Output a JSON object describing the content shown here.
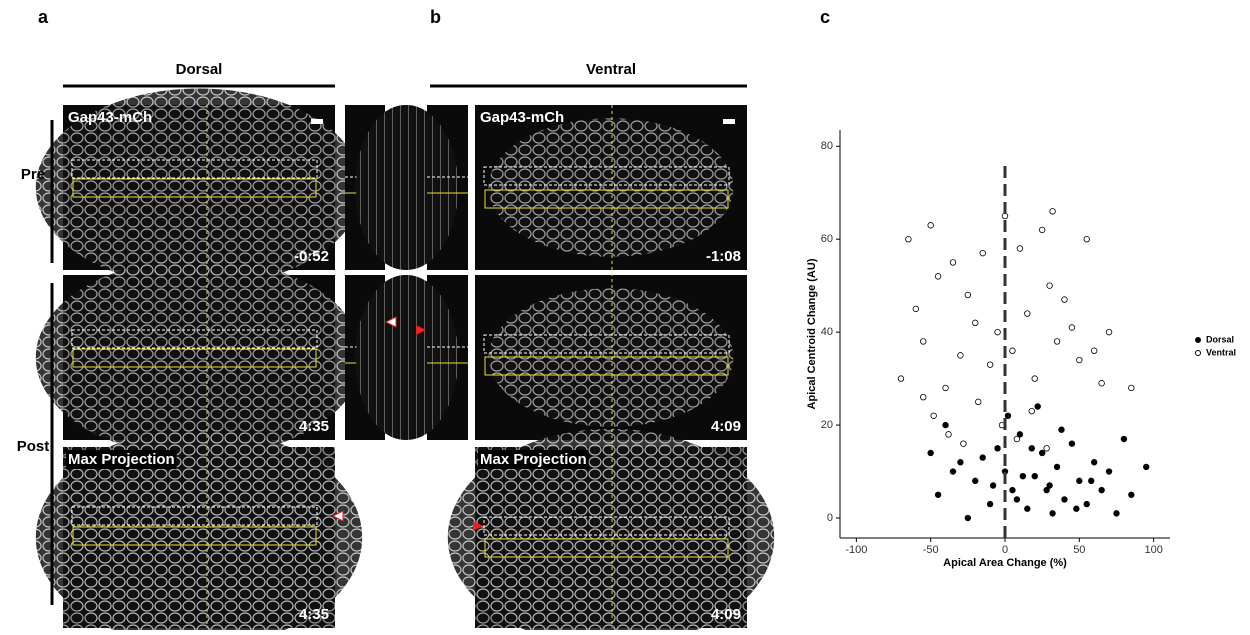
{
  "panel_labels": [
    "a",
    "b",
    "c"
  ],
  "column_titles": [
    "Dorsal",
    "Ventral"
  ],
  "row_labels": [
    "Pre",
    "Post"
  ],
  "images": [
    {
      "label": "Gap43-mCh",
      "time": "-0:52"
    },
    {
      "time": "4:35"
    },
    {
      "label": "Max Projection",
      "time": "4:35"
    },
    {
      "label": "Gap43-mCh",
      "time": "-1:08"
    },
    {
      "time": "4:09"
    },
    {
      "label": "Max Projection",
      "time": "4:09"
    }
  ],
  "chart_data": {
    "type": "scatter",
    "x_label": "Apical Area Change (%)",
    "y_label": "Apical Centroid Change (AU)",
    "xlim": [
      -111,
      111
    ],
    "ylim": [
      -4.3,
      83.5
    ],
    "xticks": [
      -100,
      -50,
      0,
      50,
      100
    ],
    "yticks": [
      0,
      20,
      40,
      60,
      80
    ],
    "vline": 0,
    "legend": "right",
    "series": [
      {
        "name": "Dorsal",
        "color": "#000000",
        "hollow": false,
        "x": [
          -45,
          -30,
          -20,
          -10,
          -5,
          0,
          5,
          10,
          15,
          20,
          25,
          30,
          35,
          40,
          45,
          50,
          55,
          60,
          65,
          70,
          75,
          80,
          85,
          95,
          -40,
          -25,
          -15,
          -8,
          2,
          8,
          12,
          18,
          28,
          38,
          48,
          58,
          -35,
          -50,
          22,
          32
        ],
        "values": [
          5,
          12,
          8,
          3,
          15,
          10,
          6,
          18,
          2,
          9,
          14,
          7,
          11,
          4,
          16,
          8,
          3,
          12,
          6,
          10,
          1,
          17,
          5,
          11,
          20,
          0,
          13,
          7,
          22,
          4,
          9,
          15,
          6,
          19,
          2,
          8,
          10,
          14,
          24,
          1
        ]
      },
      {
        "name": "Ventral",
        "color": "#000000",
        "hollow": true,
        "x": [
          -70,
          -65,
          -60,
          -55,
          -50,
          -45,
          -40,
          -35,
          -30,
          -25,
          -20,
          -15,
          -10,
          -5,
          0,
          5,
          10,
          15,
          20,
          25,
          30,
          35,
          40,
          45,
          50,
          55,
          60,
          65,
          70,
          85,
          -48,
          -38,
          -28,
          -18,
          -2,
          8,
          18,
          28,
          -55,
          32
        ],
        "values": [
          30,
          60,
          45,
          38,
          63,
          52,
          28,
          55,
          35,
          48,
          42,
          57,
          33,
          40,
          65,
          36,
          58,
          44,
          30,
          62,
          50,
          38,
          47,
          41,
          34,
          60,
          36,
          29,
          40,
          28,
          22,
          18,
          16,
          25,
          20,
          17,
          23,
          15,
          26,
          66
        ]
      }
    ]
  }
}
